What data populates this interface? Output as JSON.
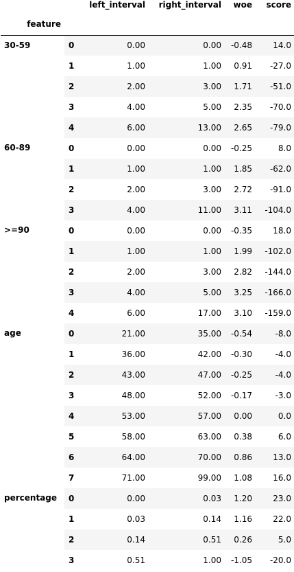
{
  "columns": {
    "left_interval": "left_interval",
    "right_interval": "right_interval",
    "woe": "woe",
    "score": "score"
  },
  "index_name": "feature",
  "groups": [
    {
      "feature": "30-59",
      "rows": [
        {
          "idx": "0",
          "left_interval": "0.00",
          "right_interval": "0.00",
          "woe": "-0.48",
          "score": "14.0"
        },
        {
          "idx": "1",
          "left_interval": "1.00",
          "right_interval": "1.00",
          "woe": "0.91",
          "score": "-27.0"
        },
        {
          "idx": "2",
          "left_interval": "2.00",
          "right_interval": "3.00",
          "woe": "1.71",
          "score": "-51.0"
        },
        {
          "idx": "3",
          "left_interval": "4.00",
          "right_interval": "5.00",
          "woe": "2.35",
          "score": "-70.0"
        },
        {
          "idx": "4",
          "left_interval": "6.00",
          "right_interval": "13.00",
          "woe": "2.65",
          "score": "-79.0"
        }
      ]
    },
    {
      "feature": "60-89",
      "rows": [
        {
          "idx": "0",
          "left_interval": "0.00",
          "right_interval": "0.00",
          "woe": "-0.25",
          "score": "8.0"
        },
        {
          "idx": "1",
          "left_interval": "1.00",
          "right_interval": "1.00",
          "woe": "1.85",
          "score": "-62.0"
        },
        {
          "idx": "2",
          "left_interval": "2.00",
          "right_interval": "3.00",
          "woe": "2.72",
          "score": "-91.0"
        },
        {
          "idx": "3",
          "left_interval": "4.00",
          "right_interval": "11.00",
          "woe": "3.11",
          "score": "-104.0"
        }
      ]
    },
    {
      "feature": ">=90",
      "rows": [
        {
          "idx": "0",
          "left_interval": "0.00",
          "right_interval": "0.00",
          "woe": "-0.35",
          "score": "18.0"
        },
        {
          "idx": "1",
          "left_interval": "1.00",
          "right_interval": "1.00",
          "woe": "1.99",
          "score": "-102.0"
        },
        {
          "idx": "2",
          "left_interval": "2.00",
          "right_interval": "3.00",
          "woe": "2.82",
          "score": "-144.0"
        },
        {
          "idx": "3",
          "left_interval": "4.00",
          "right_interval": "5.00",
          "woe": "3.25",
          "score": "-166.0"
        },
        {
          "idx": "4",
          "left_interval": "6.00",
          "right_interval": "17.00",
          "woe": "3.10",
          "score": "-159.0"
        }
      ]
    },
    {
      "feature": "age",
      "rows": [
        {
          "idx": "0",
          "left_interval": "21.00",
          "right_interval": "35.00",
          "woe": "-0.54",
          "score": "-8.0"
        },
        {
          "idx": "1",
          "left_interval": "36.00",
          "right_interval": "42.00",
          "woe": "-0.30",
          "score": "-4.0"
        },
        {
          "idx": "2",
          "left_interval": "43.00",
          "right_interval": "47.00",
          "woe": "-0.25",
          "score": "-4.0"
        },
        {
          "idx": "3",
          "left_interval": "48.00",
          "right_interval": "52.00",
          "woe": "-0.17",
          "score": "-3.0"
        },
        {
          "idx": "4",
          "left_interval": "53.00",
          "right_interval": "57.00",
          "woe": "0.00",
          "score": "0.0"
        },
        {
          "idx": "5",
          "left_interval": "58.00",
          "right_interval": "63.00",
          "woe": "0.38",
          "score": "6.0"
        },
        {
          "idx": "6",
          "left_interval": "64.00",
          "right_interval": "70.00",
          "woe": "0.86",
          "score": "13.0"
        },
        {
          "idx": "7",
          "left_interval": "71.00",
          "right_interval": "99.00",
          "woe": "1.08",
          "score": "16.0"
        }
      ]
    },
    {
      "feature": "percentage",
      "rows": [
        {
          "idx": "0",
          "left_interval": "0.00",
          "right_interval": "0.03",
          "woe": "1.20",
          "score": "23.0"
        },
        {
          "idx": "1",
          "left_interval": "0.03",
          "right_interval": "0.14",
          "woe": "1.16",
          "score": "22.0"
        },
        {
          "idx": "2",
          "left_interval": "0.14",
          "right_interval": "0.51",
          "woe": "0.26",
          "score": "5.0"
        },
        {
          "idx": "3",
          "left_interval": "0.51",
          "right_interval": "1.00",
          "woe": "-1.05",
          "score": "-20.0"
        }
      ]
    }
  ]
}
